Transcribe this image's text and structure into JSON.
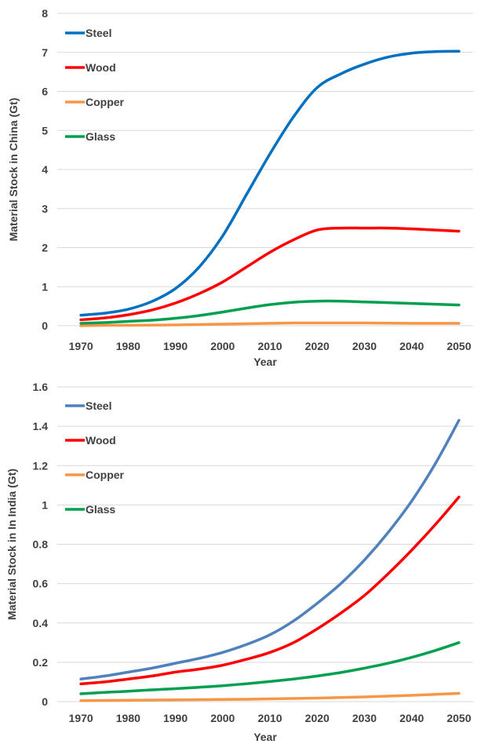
{
  "chart_data": [
    {
      "id": "china",
      "type": "line",
      "title": "",
      "xlabel": "Year",
      "ylabel": "Material Stock in China (Gt)",
      "xlim": [
        1965,
        2053
      ],
      "ylim": [
        0,
        8
      ],
      "x_ticks": [
        1970,
        1980,
        1990,
        2000,
        2010,
        2020,
        2030,
        2040,
        2050
      ],
      "y_ticks": [
        0,
        1,
        2,
        3,
        4,
        5,
        6,
        7,
        8
      ],
      "y_tick_labels": [
        "0",
        "1",
        "2",
        "3",
        "4",
        "5",
        "6",
        "7",
        "8"
      ],
      "grid": true,
      "legend_position": "top-left",
      "x": [
        1970,
        1975,
        1980,
        1985,
        1990,
        1995,
        2000,
        2005,
        2010,
        2015,
        2020,
        2025,
        2030,
        2035,
        2040,
        2045,
        2050
      ],
      "series": [
        {
          "name": "Steel",
          "color": "#0070C0",
          "values": [
            0.27,
            0.32,
            0.42,
            0.62,
            0.95,
            1.5,
            2.3,
            3.35,
            4.4,
            5.35,
            6.1,
            6.45,
            6.7,
            6.88,
            6.98,
            7.02,
            7.03
          ]
        },
        {
          "name": "Wood",
          "color": "#FF0000",
          "values": [
            0.15,
            0.2,
            0.28,
            0.4,
            0.58,
            0.82,
            1.12,
            1.5,
            1.88,
            2.2,
            2.45,
            2.5,
            2.5,
            2.5,
            2.48,
            2.45,
            2.42
          ]
        },
        {
          "name": "Copper",
          "color": "#F79646",
          "values": [
            0.0,
            0.01,
            0.01,
            0.015,
            0.02,
            0.03,
            0.04,
            0.05,
            0.06,
            0.07,
            0.07,
            0.07,
            0.07,
            0.065,
            0.06,
            0.06,
            0.06
          ]
        },
        {
          "name": "Glass",
          "color": "#00A050",
          "values": [
            0.06,
            0.08,
            0.11,
            0.14,
            0.19,
            0.26,
            0.35,
            0.45,
            0.54,
            0.6,
            0.63,
            0.63,
            0.61,
            0.59,
            0.57,
            0.55,
            0.53
          ]
        }
      ]
    },
    {
      "id": "india",
      "type": "line",
      "title": "",
      "xlabel": "Year",
      "ylabel": "Material Stock in In India (Gt)",
      "xlim": [
        1965,
        2053
      ],
      "ylim": [
        0,
        1.6
      ],
      "x_ticks": [
        1970,
        1980,
        1990,
        2000,
        2010,
        2020,
        2030,
        2040,
        2050
      ],
      "y_ticks": [
        0,
        0.2,
        0.4,
        0.6,
        0.8,
        1.0,
        1.2,
        1.4,
        1.6
      ],
      "y_tick_labels": [
        "0",
        "0.2",
        "0.4",
        "0.6",
        "0.8",
        "1",
        "1.2",
        "1.4",
        "1.6"
      ],
      "grid": true,
      "legend_position": "top-left",
      "x": [
        1970,
        1975,
        1980,
        1985,
        1990,
        1995,
        2000,
        2005,
        2010,
        2015,
        2020,
        2025,
        2030,
        2035,
        2040,
        2045,
        2050
      ],
      "series": [
        {
          "name": "Steel",
          "color": "#4F81BD",
          "values": [
            0.115,
            0.13,
            0.15,
            0.17,
            0.195,
            0.22,
            0.25,
            0.29,
            0.34,
            0.41,
            0.5,
            0.6,
            0.72,
            0.86,
            1.02,
            1.21,
            1.43
          ]
        },
        {
          "name": "Wood",
          "color": "#FF0000",
          "values": [
            0.09,
            0.1,
            0.115,
            0.13,
            0.15,
            0.165,
            0.185,
            0.215,
            0.25,
            0.3,
            0.37,
            0.45,
            0.54,
            0.65,
            0.77,
            0.9,
            1.04
          ]
        },
        {
          "name": "Copper",
          "color": "#F79646",
          "values": [
            0.005,
            0.006,
            0.007,
            0.008,
            0.009,
            0.01,
            0.011,
            0.012,
            0.014,
            0.016,
            0.018,
            0.021,
            0.024,
            0.028,
            0.032,
            0.037,
            0.042
          ]
        },
        {
          "name": "Glass",
          "color": "#00A050",
          "values": [
            0.04,
            0.047,
            0.053,
            0.06,
            0.066,
            0.073,
            0.081,
            0.091,
            0.102,
            0.115,
            0.13,
            0.148,
            0.17,
            0.195,
            0.225,
            0.26,
            0.3
          ]
        }
      ]
    }
  ]
}
